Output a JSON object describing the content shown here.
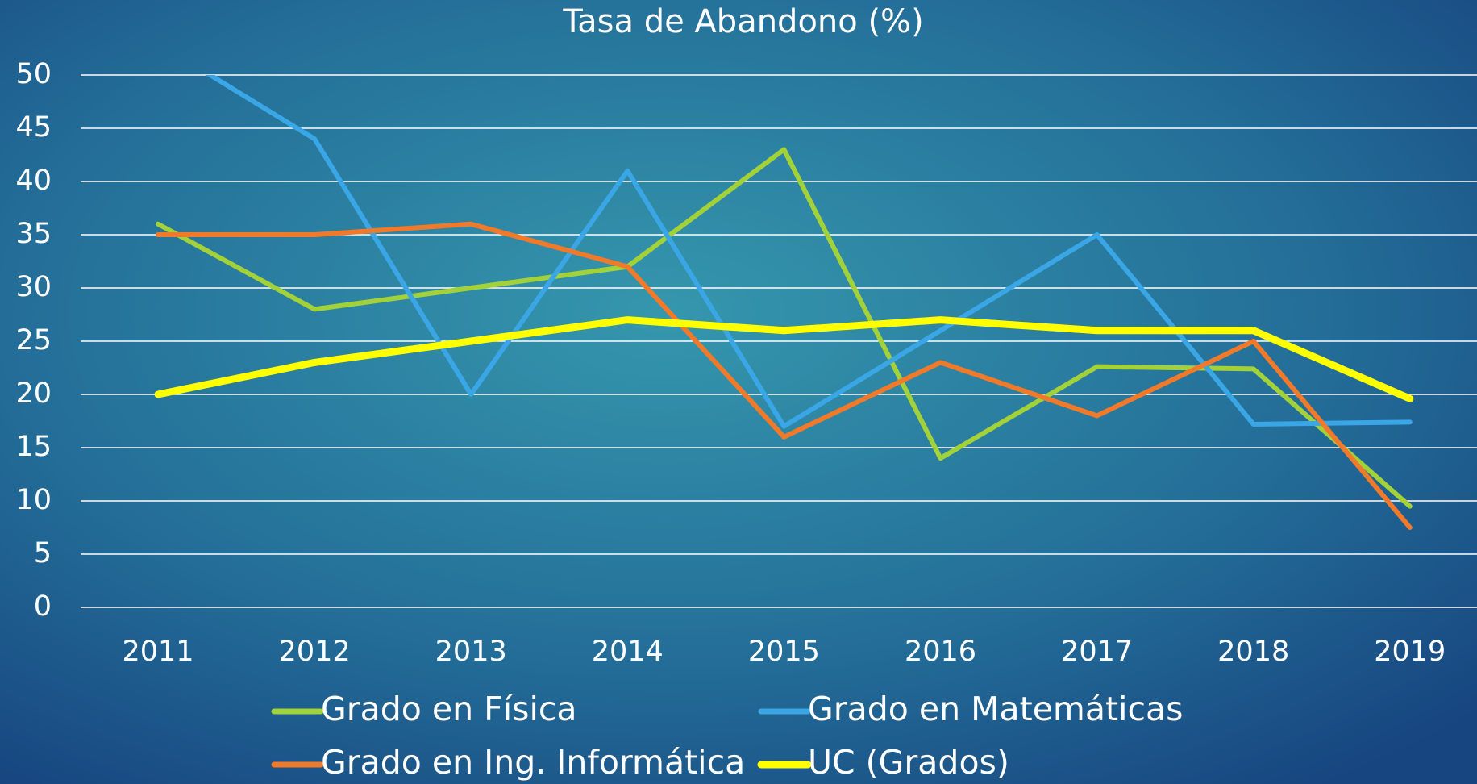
{
  "chart_data": {
    "type": "line",
    "title": "Tasa de Abandono (%)",
    "categories": [
      "2011",
      "2012",
      "2013",
      "2014",
      "2015",
      "2016",
      "2017",
      "2018",
      "2019"
    ],
    "series": [
      {
        "name": "Grado en Física",
        "color": "#a2d13a",
        "values": [
          36,
          28,
          30,
          32,
          43,
          14,
          22.6,
          22.4,
          9.5
        ]
      },
      {
        "name": "Grado en Matemáticas",
        "color": "#3aa6e6",
        "values": [
          53,
          44,
          20,
          41,
          17,
          26,
          35,
          17.2,
          17.4
        ]
      },
      {
        "name": "Grado en Ing. Informática",
        "color": "#f07a2a",
        "values": [
          35,
          35,
          36,
          32,
          16,
          23,
          18,
          25,
          7.5
        ]
      },
      {
        "name": "UC (Grados)",
        "color": "#ffff00",
        "values": [
          20,
          23,
          25,
          27,
          26,
          27,
          26,
          26,
          19.6
        ]
      }
    ],
    "ylim": [
      0,
      50
    ],
    "yticks": [
      0,
      5,
      10,
      15,
      20,
      25,
      30,
      35,
      40,
      45,
      50
    ],
    "grid": true,
    "legend": "bottom"
  }
}
